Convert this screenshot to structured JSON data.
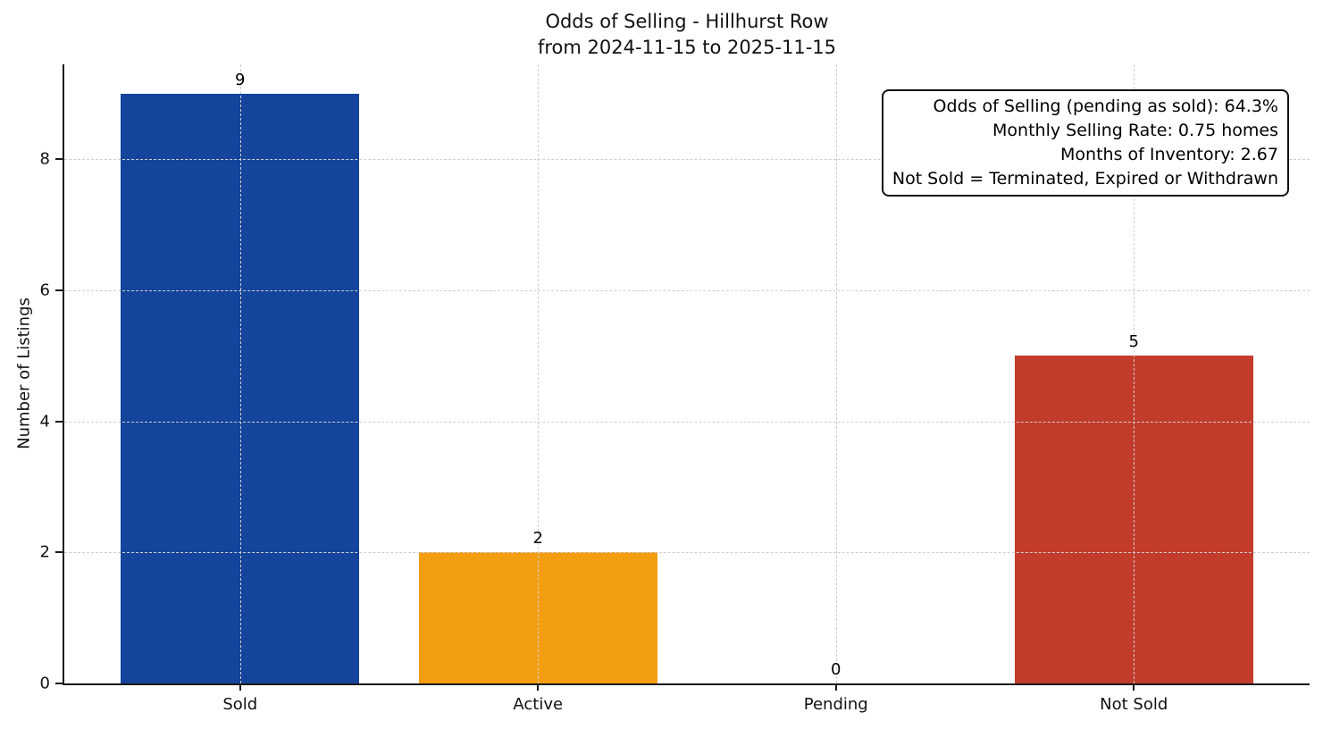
{
  "chart_data": {
    "type": "bar",
    "title": "Odds of Selling - Hillhurst Row",
    "subtitle": "from 2024-11-15 to 2025-11-15",
    "ylabel": "Number of Listings",
    "xlabel": "",
    "categories": [
      "Sold",
      "Active",
      "Pending",
      "Not Sold"
    ],
    "values": [
      9,
      2,
      0,
      5
    ],
    "bar_colors": [
      "#14449B",
      "#F39D10",
      "#808080",
      "#C23B2B"
    ],
    "yticks": [
      0,
      2,
      4,
      6,
      8
    ],
    "ylim": [
      0,
      9.45
    ],
    "grid": {
      "style": "dashed",
      "color": "#cfcfcf",
      "axes": "both"
    },
    "legend": "none",
    "annotation": {
      "position": "top-right",
      "lines": [
        "Odds of Selling (pending as sold): 64.3%",
        "Monthly Selling Rate: 0.75 homes",
        "Months of Inventory: 2.67",
        "Not Sold = Terminated, Expired or Withdrawn"
      ]
    }
  },
  "colors": {
    "spine": "#1a1a1a",
    "grid": "#cfcfcf",
    "text": "#111111",
    "background": "#ffffff"
  }
}
